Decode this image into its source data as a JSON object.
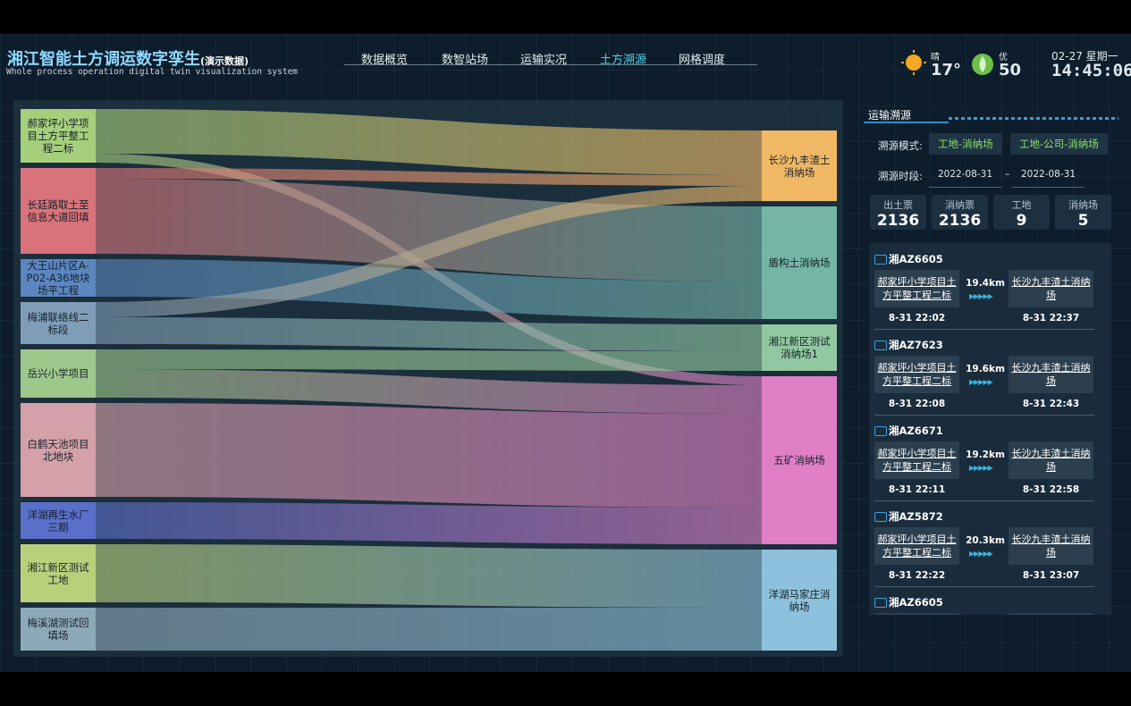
{
  "header": {
    "title": "湘江智能土方调运数字孪生",
    "title_suffix": "(演示数据)",
    "subtitle": "Whole process operation digital twin visualization system",
    "nav": [
      "数据概览",
      "数智站场",
      "运输实况",
      "土方溯源",
      "网格调度"
    ],
    "active_nav": 3,
    "weather": "晴",
    "temperature": "17°",
    "air_quality": "优",
    "aqi": "50",
    "date": "02-27 星期一",
    "time": "14:45:06"
  },
  "sankey": {
    "sources": [
      {
        "label": "郝家坪小学项目土方平整工程二标",
        "color": "#a6cf7c"
      },
      {
        "label": "长廷路取土至信息大道回填",
        "color": "#d9737a"
      },
      {
        "label": "大王山片区A-P02-A36地块场平工程",
        "color": "#5b86c0"
      },
      {
        "label": "梅浦联络线二标段",
        "color": "#7f9db8"
      },
      {
        "label": "岳兴小学项目",
        "color": "#9ec78c"
      },
      {
        "label": "白鹤天池项目北地块",
        "color": "#d4a1a9"
      },
      {
        "label": "洋湖再生水厂三期",
        "color": "#5a6fc9"
      },
      {
        "label": "湘江新区测试工地",
        "color": "#b9d07b"
      },
      {
        "label": "梅溪湖测试回填场",
        "color": "#8da8b9"
      }
    ],
    "targets": [
      {
        "label": "长沙九丰渣土消纳场",
        "color": "#f0b865"
      },
      {
        "label": "盾构土消纳场",
        "color": "#74b5a6"
      },
      {
        "label": "湘江新区测试消纳场1",
        "color": "#91c8a1"
      },
      {
        "label": "五矿消纳场",
        "color": "#e07fc6"
      },
      {
        "label": "洋湖马家庄消纳场",
        "color": "#8ec2dc"
      }
    ],
    "links": [
      {
        "source": 0,
        "target": 0,
        "value": 50
      },
      {
        "source": 0,
        "target": 3,
        "value": 10
      },
      {
        "source": 1,
        "target": 0,
        "value": 12
      },
      {
        "source": 1,
        "target": 1,
        "value": 84
      },
      {
        "source": 2,
        "target": 1,
        "value": 42
      },
      {
        "source": 3,
        "target": 0,
        "value": 17
      },
      {
        "source": 3,
        "target": 2,
        "value": 30
      },
      {
        "source": 4,
        "target": 2,
        "value": 22
      },
      {
        "source": 4,
        "target": 3,
        "value": 32
      },
      {
        "source": 5,
        "target": 3,
        "value": 105
      },
      {
        "source": 6,
        "target": 3,
        "value": 41
      },
      {
        "source": 7,
        "target": 4,
        "value": 65
      },
      {
        "source": 8,
        "target": 4,
        "value": 48
      }
    ]
  },
  "panel": {
    "title": "运输溯源",
    "mode_label": "溯源模式:",
    "modes": [
      "工地-消纳场",
      "工地-公司-消纳场"
    ],
    "period_label": "溯源时段:",
    "date_from": "2022-08-31",
    "date_separator": "–",
    "date_to": "2022-08-31",
    "stats": [
      {
        "label": "出土票",
        "value": "2136"
      },
      {
        "label": "消纳票",
        "value": "2136"
      },
      {
        "label": "工地",
        "value": "9"
      },
      {
        "label": "消纳场",
        "value": "5"
      }
    ],
    "records": [
      {
        "plate": "湘AZ6605",
        "origin": "郝家坪小学项目土方平整工程二标",
        "distance": "19.4km",
        "destination": "长沙九丰渣土消纳场",
        "start": "8-31 22:02",
        "end": "8-31 22:37"
      },
      {
        "plate": "湘AZ7623",
        "origin": "郝家坪小学项目土方平整工程二标",
        "distance": "19.6km",
        "destination": "长沙九丰渣土消纳场",
        "start": "8-31 22:08",
        "end": "8-31 22:43"
      },
      {
        "plate": "湘AZ6671",
        "origin": "郝家坪小学项目土方平整工程二标",
        "distance": "19.2km",
        "destination": "长沙九丰渣土消纳场",
        "start": "8-31 22:11",
        "end": "8-31 22:58"
      },
      {
        "plate": "湘AZ5872",
        "origin": "郝家坪小学项目土方平整工程二标",
        "distance": "20.3km",
        "destination": "长沙九丰渣土消纳场",
        "start": "8-31 22:22",
        "end": "8-31 23:07"
      },
      {
        "plate": "湘AZ6605"
      }
    ]
  }
}
